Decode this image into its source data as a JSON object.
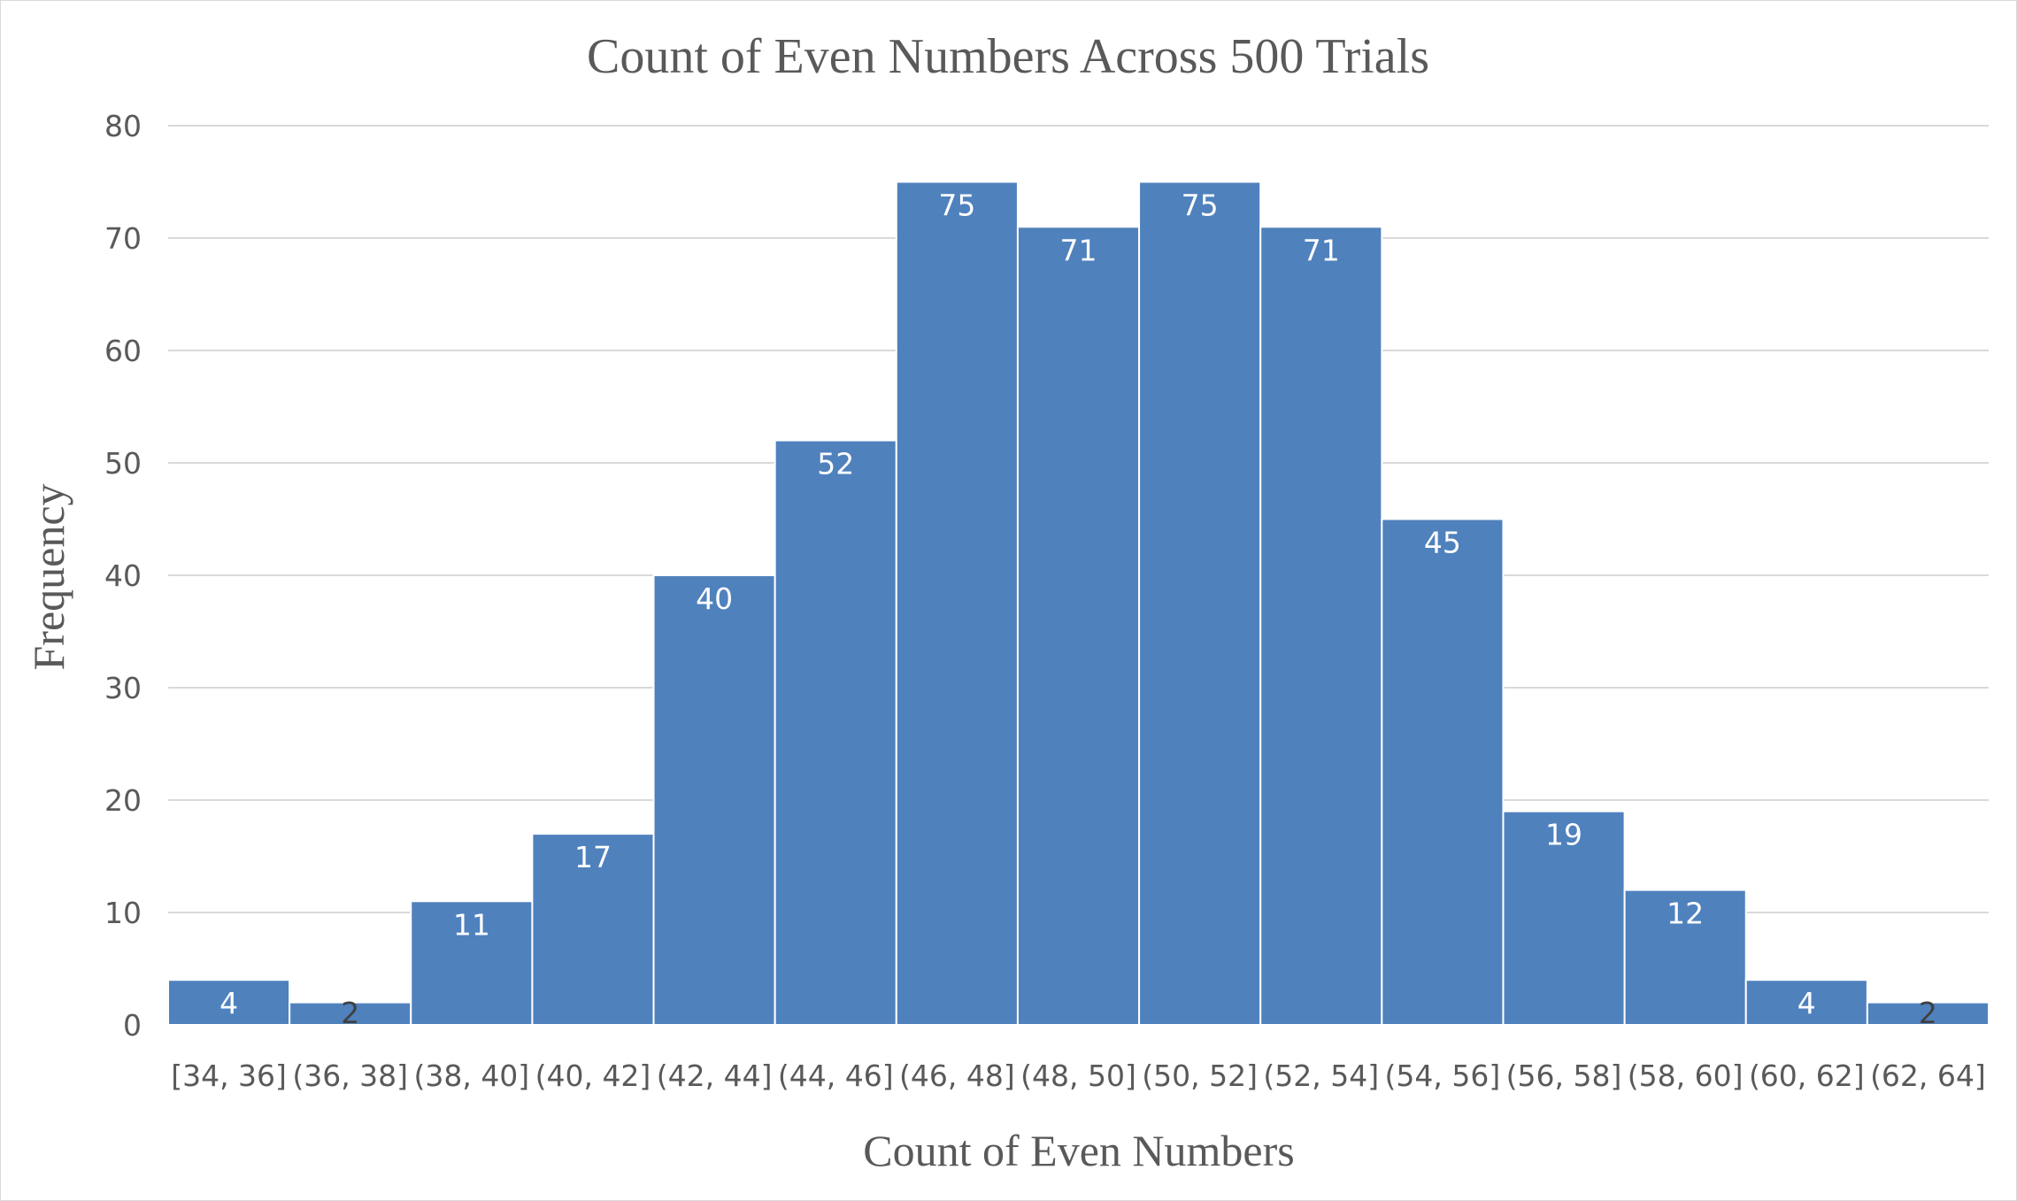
{
  "chart_data": {
    "type": "bar",
    "title": "Count of Even Numbers Across 500 Trials",
    "xlabel": "Count of Even Numbers",
    "ylabel": "Frequency",
    "categories": [
      "[34, 36]",
      "(36, 38]",
      "(38, 40]",
      "(40, 42]",
      "(42, 44]",
      "(44, 46]",
      "(46, 48]",
      "(48, 50]",
      "(50, 52]",
      "(52, 54]",
      "(54, 56]",
      "(56, 58]",
      "(58, 60]",
      "(60, 62]",
      "(62, 64]"
    ],
    "values": [
      4,
      2,
      11,
      17,
      40,
      52,
      75,
      71,
      75,
      71,
      45,
      19,
      12,
      4,
      2
    ],
    "ylim": [
      0,
      80
    ],
    "yticks": [
      0,
      10,
      20,
      30,
      40,
      50,
      60,
      70,
      80
    ],
    "grid": true,
    "legend": "none",
    "colors": {
      "bar": "#4f81bd",
      "label_inside": "#ffffff",
      "label_small": "#404040",
      "grid": "#d9d9d9",
      "text": "#595959"
    }
  }
}
